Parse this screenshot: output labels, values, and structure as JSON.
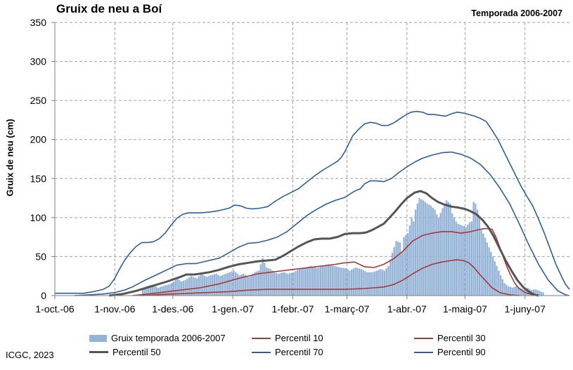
{
  "title": "Gruix de neu a Boí",
  "subtitle": "Temporada 2006-2007",
  "credit": "ICGC, 2023",
  "colors": {
    "bars": "#95b3d7",
    "p10": "#a33a3a",
    "p30": "#a33a3a",
    "p50": "#555555",
    "p70": "#2f5f9a",
    "p90": "#2f5f9a",
    "grid": "#a0a0a0"
  },
  "chart_data": {
    "type": "bar+line",
    "ylabel": "Gruix de neu (cm)",
    "ylim": [
      0,
      350
    ],
    "yticks": [
      0,
      50,
      100,
      150,
      200,
      250,
      300,
      350
    ],
    "xlim_days": [
      0,
      266
    ],
    "x_ticks": [
      {
        "label": "1-oct.-06",
        "day": 0
      },
      {
        "label": "1-nov.-06",
        "day": 31
      },
      {
        "label": "1-des.-06",
        "day": 61
      },
      {
        "label": "1-gen.-07",
        "day": 92
      },
      {
        "label": "1-febr.-07",
        "day": 123
      },
      {
        "label": "1-març-07",
        "day": 151
      },
      {
        "label": "1-abr.-07",
        "day": 182
      },
      {
        "label": "1-maig-07",
        "day": 212
      },
      {
        "label": "1-juny-07",
        "day": 243
      }
    ],
    "grid": true,
    "legend": {
      "position": "bottom",
      "bars": "Gruix temporada 2006-2007",
      "p10": "Percentil 10",
      "p30": "Percentil 30",
      "p50": "Percentil 50",
      "p70": "Percentil 70",
      "p90": "Percentil 90"
    },
    "snow_depth": [
      [
        44,
        0
      ],
      [
        45,
        8
      ],
      [
        47,
        12
      ],
      [
        50,
        14
      ],
      [
        53,
        10
      ],
      [
        55,
        12
      ],
      [
        58,
        14
      ],
      [
        60,
        16
      ],
      [
        63,
        22
      ],
      [
        65,
        18
      ],
      [
        67,
        20
      ],
      [
        70,
        25
      ],
      [
        73,
        22
      ],
      [
        75,
        28
      ],
      [
        78,
        24
      ],
      [
        80,
        26
      ],
      [
        83,
        28
      ],
      [
        85,
        25
      ],
      [
        88,
        28
      ],
      [
        90,
        30
      ],
      [
        92,
        32
      ],
      [
        95,
        26
      ],
      [
        97,
        28
      ],
      [
        100,
        24
      ],
      [
        103,
        30
      ],
      [
        105,
        32
      ],
      [
        107,
        48
      ],
      [
        109,
        36
      ],
      [
        111,
        34
      ],
      [
        113,
        30
      ],
      [
        115,
        28
      ],
      [
        118,
        30
      ],
      [
        120,
        28
      ],
      [
        123,
        30
      ],
      [
        126,
        34
      ],
      [
        129,
        36
      ],
      [
        132,
        38
      ],
      [
        135,
        35
      ],
      [
        138,
        38
      ],
      [
        141,
        40
      ],
      [
        144,
        38
      ],
      [
        147,
        36
      ],
      [
        150,
        35
      ],
      [
        152,
        32
      ],
      [
        155,
        36
      ],
      [
        158,
        34
      ],
      [
        161,
        30
      ],
      [
        164,
        30
      ],
      [
        166,
        32
      ],
      [
        168,
        34
      ],
      [
        170,
        32
      ],
      [
        172,
        38
      ],
      [
        174,
        55
      ],
      [
        175,
        62
      ],
      [
        176,
        70
      ],
      [
        178,
        68
      ],
      [
        179,
        56
      ],
      [
        180,
        75
      ],
      [
        182,
        80
      ],
      [
        183,
        90
      ],
      [
        184,
        100
      ],
      [
        185,
        95
      ],
      [
        186,
        110
      ],
      [
        187,
        118
      ],
      [
        188,
        125
      ],
      [
        190,
        122
      ],
      [
        192,
        118
      ],
      [
        194,
        115
      ],
      [
        196,
        110
      ],
      [
        197,
        104
      ],
      [
        198,
        100
      ],
      [
        200,
        112
      ],
      [
        202,
        122
      ],
      [
        203,
        120
      ],
      [
        204,
        118
      ],
      [
        205,
        105
      ],
      [
        206,
        100
      ],
      [
        207,
        95
      ],
      [
        208,
        92
      ],
      [
        210,
        90
      ],
      [
        212,
        88
      ],
      [
        214,
        94
      ],
      [
        215,
        95
      ],
      [
        216,
        120
      ],
      [
        217,
        118
      ],
      [
        218,
        110
      ],
      [
        219,
        100
      ],
      [
        220,
        85
      ],
      [
        222,
        74
      ],
      [
        224,
        62
      ],
      [
        226,
        50
      ],
      [
        228,
        38
      ],
      [
        230,
        26
      ],
      [
        232,
        16
      ],
      [
        234,
        12
      ],
      [
        236,
        10
      ],
      [
        238,
        12
      ],
      [
        240,
        10
      ],
      [
        242,
        8
      ],
      [
        244,
        10
      ],
      [
        246,
        7
      ],
      [
        248,
        8
      ],
      [
        250,
        6
      ],
      [
        252,
        4
      ],
      [
        253,
        0
      ]
    ],
    "p10": [
      [
        45,
        0
      ],
      [
        52,
        1
      ],
      [
        60,
        2
      ],
      [
        70,
        3
      ],
      [
        80,
        4
      ],
      [
        90,
        5
      ],
      [
        100,
        7
      ],
      [
        110,
        8
      ],
      [
        120,
        8
      ],
      [
        130,
        8
      ],
      [
        140,
        8
      ],
      [
        150,
        8
      ],
      [
        160,
        9
      ],
      [
        170,
        11
      ],
      [
        175,
        14
      ],
      [
        180,
        20
      ],
      [
        185,
        28
      ],
      [
        190,
        35
      ],
      [
        195,
        40
      ],
      [
        200,
        43
      ],
      [
        205,
        45
      ],
      [
        208,
        46
      ],
      [
        211,
        45
      ],
      [
        214,
        42
      ],
      [
        217,
        35
      ],
      [
        220,
        26
      ],
      [
        223,
        18
      ],
      [
        226,
        10
      ],
      [
        230,
        4
      ],
      [
        235,
        1
      ],
      [
        240,
        0
      ]
    ],
    "p30": [
      [
        40,
        0
      ],
      [
        48,
        2
      ],
      [
        55,
        4
      ],
      [
        65,
        7
      ],
      [
        75,
        10
      ],
      [
        85,
        15
      ],
      [
        95,
        22
      ],
      [
        105,
        28
      ],
      [
        115,
        31
      ],
      [
        125,
        34
      ],
      [
        135,
        37
      ],
      [
        145,
        40
      ],
      [
        150,
        42
      ],
      [
        155,
        43
      ],
      [
        160,
        37
      ],
      [
        165,
        36
      ],
      [
        170,
        40
      ],
      [
        175,
        47
      ],
      [
        180,
        57
      ],
      [
        185,
        70
      ],
      [
        190,
        77
      ],
      [
        195,
        80
      ],
      [
        200,
        82
      ],
      [
        205,
        82
      ],
      [
        210,
        80
      ],
      [
        215,
        82
      ],
      [
        220,
        85
      ],
      [
        223,
        86
      ],
      [
        226,
        85
      ],
      [
        228,
        75
      ],
      [
        230,
        62
      ],
      [
        232,
        48
      ],
      [
        234,
        35
      ],
      [
        236,
        24
      ],
      [
        238,
        15
      ],
      [
        240,
        9
      ],
      [
        243,
        4
      ],
      [
        247,
        1
      ],
      [
        250,
        0
      ]
    ],
    "p50": [
      [
        28,
        0
      ],
      [
        35,
        2
      ],
      [
        42,
        6
      ],
      [
        50,
        12
      ],
      [
        58,
        18
      ],
      [
        65,
        24
      ],
      [
        68,
        27
      ],
      [
        72,
        27
      ],
      [
        75,
        28
      ],
      [
        80,
        30
      ],
      [
        85,
        33
      ],
      [
        90,
        37
      ],
      [
        95,
        40
      ],
      [
        100,
        42
      ],
      [
        105,
        44
      ],
      [
        110,
        45
      ],
      [
        114,
        46
      ],
      [
        118,
        51
      ],
      [
        122,
        57
      ],
      [
        126,
        63
      ],
      [
        130,
        68
      ],
      [
        134,
        72
      ],
      [
        138,
        73
      ],
      [
        142,
        73
      ],
      [
        146,
        75
      ],
      [
        150,
        79
      ],
      [
        154,
        80
      ],
      [
        158,
        80
      ],
      [
        161,
        81
      ],
      [
        164,
        84
      ],
      [
        167,
        88
      ],
      [
        170,
        92
      ],
      [
        173,
        100
      ],
      [
        176,
        108
      ],
      [
        179,
        117
      ],
      [
        182,
        125
      ],
      [
        186,
        132
      ],
      [
        189,
        134
      ],
      [
        192,
        131
      ],
      [
        195,
        125
      ],
      [
        198,
        120
      ],
      [
        201,
        117
      ],
      [
        205,
        114
      ],
      [
        208,
        113
      ],
      [
        212,
        111
      ],
      [
        215,
        108
      ],
      [
        218,
        104
      ],
      [
        221,
        97
      ],
      [
        224,
        88
      ],
      [
        227,
        75
      ],
      [
        230,
        60
      ],
      [
        233,
        45
      ],
      [
        236,
        32
      ],
      [
        239,
        20
      ],
      [
        242,
        11
      ],
      [
        245,
        5
      ],
      [
        248,
        1
      ],
      [
        250,
        0
      ]
    ],
    "p70": [
      [
        10,
        0
      ],
      [
        18,
        1
      ],
      [
        25,
        2
      ],
      [
        31,
        4
      ],
      [
        36,
        7
      ],
      [
        40,
        11
      ],
      [
        46,
        19
      ],
      [
        52,
        26
      ],
      [
        58,
        33
      ],
      [
        63,
        39
      ],
      [
        68,
        41
      ],
      [
        73,
        41
      ],
      [
        78,
        44
      ],
      [
        85,
        48
      ],
      [
        90,
        55
      ],
      [
        95,
        62
      ],
      [
        100,
        67
      ],
      [
        105,
        68
      ],
      [
        110,
        71
      ],
      [
        115,
        75
      ],
      [
        120,
        82
      ],
      [
        125,
        92
      ],
      [
        130,
        102
      ],
      [
        135,
        110
      ],
      [
        140,
        117
      ],
      [
        145,
        122
      ],
      [
        150,
        126
      ],
      [
        155,
        134
      ],
      [
        158,
        137
      ],
      [
        160,
        143
      ],
      [
        163,
        147
      ],
      [
        166,
        147
      ],
      [
        170,
        146
      ],
      [
        174,
        150
      ],
      [
        178,
        158
      ],
      [
        182,
        165
      ],
      [
        186,
        171
      ],
      [
        190,
        176
      ],
      [
        195,
        180
      ],
      [
        200,
        183
      ],
      [
        205,
        184
      ],
      [
        210,
        181
      ],
      [
        215,
        176
      ],
      [
        220,
        168
      ],
      [
        225,
        155
      ],
      [
        230,
        138
      ],
      [
        235,
        118
      ],
      [
        240,
        92
      ],
      [
        245,
        65
      ],
      [
        250,
        40
      ],
      [
        255,
        20
      ],
      [
        260,
        6
      ],
      [
        264,
        1
      ],
      [
        266,
        0
      ]
    ],
    "p90": [
      [
        0,
        3
      ],
      [
        8,
        3
      ],
      [
        15,
        3
      ],
      [
        20,
        5
      ],
      [
        25,
        8
      ],
      [
        28,
        12
      ],
      [
        31,
        22
      ],
      [
        33,
        32
      ],
      [
        36,
        45
      ],
      [
        39,
        55
      ],
      [
        42,
        63
      ],
      [
        45,
        68
      ],
      [
        48,
        68
      ],
      [
        51,
        69
      ],
      [
        54,
        73
      ],
      [
        57,
        80
      ],
      [
        60,
        90
      ],
      [
        63,
        99
      ],
      [
        66,
        104
      ],
      [
        69,
        106
      ],
      [
        72,
        106
      ],
      [
        75,
        106
      ],
      [
        80,
        107
      ],
      [
        85,
        109
      ],
      [
        90,
        112
      ],
      [
        93,
        116
      ],
      [
        96,
        115
      ],
      [
        99,
        112
      ],
      [
        102,
        111
      ],
      [
        106,
        112
      ],
      [
        110,
        114
      ],
      [
        114,
        121
      ],
      [
        118,
        127
      ],
      [
        122,
        132
      ],
      [
        126,
        137
      ],
      [
        130,
        145
      ],
      [
        134,
        153
      ],
      [
        138,
        160
      ],
      [
        142,
        166
      ],
      [
        146,
        172
      ],
      [
        148,
        177
      ],
      [
        150,
        185
      ],
      [
        152,
        195
      ],
      [
        154,
        205
      ],
      [
        157,
        213
      ],
      [
        160,
        220
      ],
      [
        163,
        222
      ],
      [
        166,
        221
      ],
      [
        169,
        218
      ],
      [
        172,
        218
      ],
      [
        175,
        221
      ],
      [
        178,
        226
      ],
      [
        181,
        231
      ],
      [
        184,
        235
      ],
      [
        187,
        236
      ],
      [
        190,
        235
      ],
      [
        193,
        232
      ],
      [
        196,
        232
      ],
      [
        199,
        231
      ],
      [
        202,
        230
      ],
      [
        205,
        233
      ],
      [
        208,
        235
      ],
      [
        211,
        234
      ],
      [
        214,
        232
      ],
      [
        217,
        230
      ],
      [
        220,
        227
      ],
      [
        223,
        223
      ],
      [
        226,
        212
      ],
      [
        229,
        200
      ],
      [
        232,
        185
      ],
      [
        235,
        170
      ],
      [
        238,
        155
      ],
      [
        241,
        140
      ],
      [
        244,
        127
      ],
      [
        247,
        115
      ],
      [
        250,
        98
      ],
      [
        253,
        80
      ],
      [
        256,
        60
      ],
      [
        259,
        40
      ],
      [
        262,
        24
      ],
      [
        264,
        14
      ],
      [
        266,
        8
      ]
    ]
  }
}
